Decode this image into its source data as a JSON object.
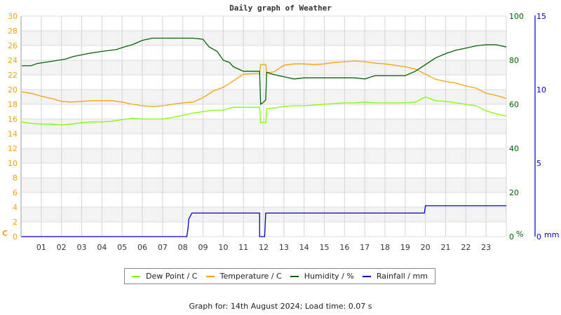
{
  "chart_data": {
    "type": "line",
    "title": "Daily graph of Weather",
    "x_ticks": [
      "01",
      "02",
      "03",
      "04",
      "05",
      "06",
      "07",
      "08",
      "09",
      "10",
      "11",
      "12",
      "13",
      "14",
      "15",
      "16",
      "17",
      "18",
      "19",
      "20",
      "21",
      "22",
      "23"
    ],
    "xlim": [
      0,
      24
    ],
    "axes": {
      "left": {
        "label": "C",
        "ylim": [
          0,
          30
        ],
        "ticks": [
          0,
          2,
          4,
          6,
          8,
          10,
          12,
          14,
          16,
          18,
          20,
          22,
          24,
          26,
          28,
          30
        ],
        "color": "#f5a40d"
      },
      "humidity": {
        "label": "%",
        "ylim": [
          0,
          100
        ],
        "ticks": [
          0,
          20,
          40,
          60,
          80,
          100
        ],
        "color": "#006400"
      },
      "rain": {
        "label": "mm",
        "ylim": [
          0,
          15
        ],
        "ticks": [
          0,
          5,
          10,
          15
        ],
        "color": "#0000cc"
      }
    },
    "grid": true,
    "legend_position": "bottom",
    "series": [
      {
        "name": "Dew Point / C",
        "axis": "left",
        "color": "#7fff00",
        "points": [
          [
            0,
            15.6
          ],
          [
            0.5,
            15.4
          ],
          [
            1,
            15.3
          ],
          [
            1.5,
            15.3
          ],
          [
            2,
            15.2
          ],
          [
            2.5,
            15.3
          ],
          [
            3,
            15.5
          ],
          [
            3.5,
            15.6
          ],
          [
            4,
            15.6
          ],
          [
            4.5,
            15.7
          ],
          [
            5,
            15.9
          ],
          [
            5.5,
            16.1
          ],
          [
            6,
            16.0
          ],
          [
            6.5,
            16.0
          ],
          [
            7,
            16.0
          ],
          [
            7.5,
            16.2
          ],
          [
            8,
            16.5
          ],
          [
            8.5,
            16.8
          ],
          [
            9,
            17.0
          ],
          [
            9.5,
            17.2
          ],
          [
            10,
            17.2
          ],
          [
            10.5,
            17.6
          ],
          [
            11,
            17.6
          ],
          [
            11.8,
            17.6
          ],
          [
            11.85,
            15.5
          ],
          [
            12.1,
            15.5
          ],
          [
            12.15,
            17.4
          ],
          [
            12.5,
            17.5
          ],
          [
            13,
            17.7
          ],
          [
            13.5,
            17.8
          ],
          [
            14,
            17.8
          ],
          [
            14.5,
            17.9
          ],
          [
            15,
            18.0
          ],
          [
            15.5,
            18.1
          ],
          [
            16,
            18.2
          ],
          [
            16.5,
            18.2
          ],
          [
            17,
            18.3
          ],
          [
            17.5,
            18.2
          ],
          [
            18,
            18.2
          ],
          [
            18.5,
            18.2
          ],
          [
            19,
            18.2
          ],
          [
            19.5,
            18.3
          ],
          [
            20,
            19.0
          ],
          [
            20.5,
            18.5
          ],
          [
            21,
            18.4
          ],
          [
            21.5,
            18.2
          ],
          [
            22,
            18.0
          ],
          [
            22.5,
            17.8
          ],
          [
            23,
            17.1
          ],
          [
            23.5,
            16.7
          ],
          [
            24,
            16.4
          ]
        ]
      },
      {
        "name": "Temperature / C",
        "axis": "left",
        "color": "#f5a40d",
        "points": [
          [
            0,
            19.7
          ],
          [
            0.5,
            19.5
          ],
          [
            1,
            19.1
          ],
          [
            1.5,
            18.8
          ],
          [
            2,
            18.4
          ],
          [
            2.5,
            18.3
          ],
          [
            3,
            18.4
          ],
          [
            3.5,
            18.5
          ],
          [
            4,
            18.5
          ],
          [
            4.5,
            18.5
          ],
          [
            5,
            18.3
          ],
          [
            5.5,
            18.0
          ],
          [
            6,
            17.8
          ],
          [
            6.5,
            17.7
          ],
          [
            7,
            17.8
          ],
          [
            7.5,
            18.0
          ],
          [
            8,
            18.2
          ],
          [
            8.5,
            18.3
          ],
          [
            9,
            18.9
          ],
          [
            9.5,
            19.8
          ],
          [
            10,
            20.3
          ],
          [
            10.5,
            21.2
          ],
          [
            11,
            22.1
          ],
          [
            11.8,
            22.2
          ],
          [
            11.85,
            23.4
          ],
          [
            12.1,
            23.4
          ],
          [
            12.15,
            22.3
          ],
          [
            12.5,
            22.4
          ],
          [
            13,
            23.3
          ],
          [
            13.5,
            23.5
          ],
          [
            14,
            23.5
          ],
          [
            14.5,
            23.4
          ],
          [
            15,
            23.5
          ],
          [
            15.5,
            23.7
          ],
          [
            16,
            23.8
          ],
          [
            16.5,
            23.9
          ],
          [
            17,
            23.8
          ],
          [
            17.5,
            23.6
          ],
          [
            18,
            23.5
          ],
          [
            18.5,
            23.3
          ],
          [
            19,
            23.1
          ],
          [
            19.5,
            22.8
          ],
          [
            20,
            22.1
          ],
          [
            20.5,
            21.4
          ],
          [
            21,
            21.1
          ],
          [
            21.5,
            20.9
          ],
          [
            22,
            20.5
          ],
          [
            22.5,
            20.2
          ],
          [
            23,
            19.5
          ],
          [
            23.5,
            19.2
          ],
          [
            24,
            18.8
          ]
        ]
      },
      {
        "name": "Humidity / %",
        "axis": "humidity",
        "color": "#006400",
        "points": [
          [
            0,
            77.5
          ],
          [
            0.5,
            77.5
          ],
          [
            0.8,
            78.5
          ],
          [
            1.5,
            79.5
          ],
          [
            2.2,
            80.5
          ],
          [
            2.6,
            81.7
          ],
          [
            3.3,
            83
          ],
          [
            4,
            84
          ],
          [
            4.7,
            84.8
          ],
          [
            5.1,
            86
          ],
          [
            5.5,
            87
          ],
          [
            6,
            89
          ],
          [
            6.5,
            90
          ],
          [
            7,
            90
          ],
          [
            7.5,
            90
          ],
          [
            8,
            90
          ],
          [
            8.5,
            90
          ],
          [
            9,
            89.5
          ],
          [
            9.3,
            86
          ],
          [
            9.7,
            84
          ],
          [
            10,
            80
          ],
          [
            10.3,
            79
          ],
          [
            10.5,
            77
          ],
          [
            11,
            75
          ],
          [
            11.8,
            75
          ],
          [
            11.85,
            60
          ],
          [
            12,
            61
          ],
          [
            12.1,
            62
          ],
          [
            12.15,
            74.5
          ],
          [
            12.5,
            73.5
          ],
          [
            13,
            72.5
          ],
          [
            13.5,
            71.5
          ],
          [
            14,
            72
          ],
          [
            14.5,
            72
          ],
          [
            15,
            72
          ],
          [
            15.5,
            72
          ],
          [
            16,
            72
          ],
          [
            16.5,
            72
          ],
          [
            17,
            71.5
          ],
          [
            17.5,
            73
          ],
          [
            18,
            73
          ],
          [
            18.5,
            73
          ],
          [
            19,
            73
          ],
          [
            19.5,
            75
          ],
          [
            20,
            78
          ],
          [
            20.5,
            81
          ],
          [
            21,
            83
          ],
          [
            21.5,
            84.5
          ],
          [
            22,
            85.5
          ],
          [
            22.5,
            86.5
          ],
          [
            23,
            87
          ],
          [
            23.5,
            87
          ],
          [
            24,
            86
          ]
        ]
      },
      {
        "name": "Rainfall / mm",
        "axis": "rain",
        "color": "#0000cc",
        "points": [
          [
            0,
            0
          ],
          [
            8.2,
            0
          ],
          [
            8.25,
            0.5
          ],
          [
            8.3,
            1.2
          ],
          [
            8.45,
            1.6
          ],
          [
            11.8,
            1.6
          ],
          [
            11.8,
            0
          ],
          [
            12.05,
            0
          ],
          [
            12.1,
            1.6
          ],
          [
            19.95,
            1.6
          ],
          [
            20,
            2.1
          ],
          [
            24,
            2.1
          ]
        ]
      }
    ]
  },
  "title": "Daily graph of Weather",
  "axis_labels": {
    "left_unit": "C",
    "humidity_unit": "%",
    "rain_unit": "mm"
  },
  "legend": [
    {
      "label": "Dew Point / C",
      "color": "#7fff00"
    },
    {
      "label": "Temperature / C",
      "color": "#f5a40d"
    },
    {
      "label": "Humidity / %",
      "color": "#006400"
    },
    {
      "label": "Rainfall / mm",
      "color": "#0000cc"
    }
  ],
  "footer": "Graph for: 14th August 2024; Load time: 0.07 s"
}
